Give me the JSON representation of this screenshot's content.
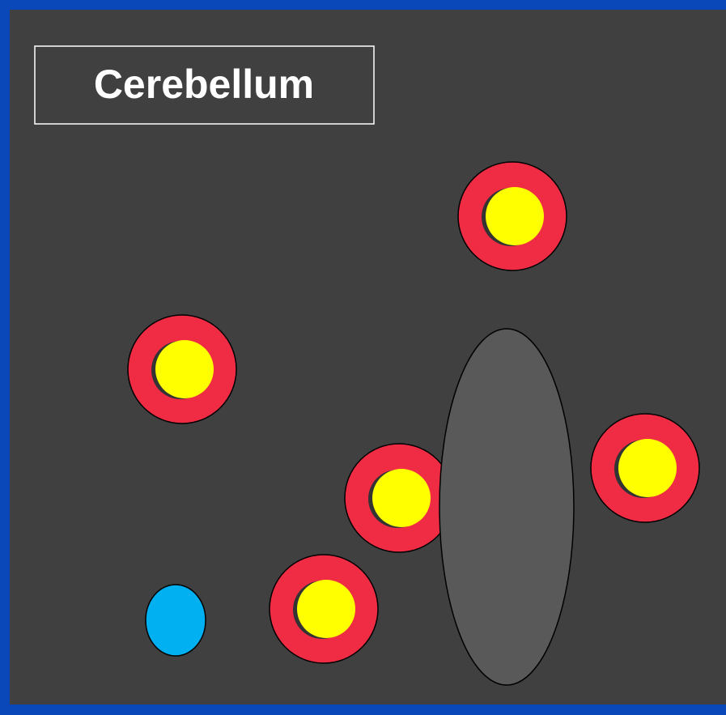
{
  "title": "Cerebellum"
}
